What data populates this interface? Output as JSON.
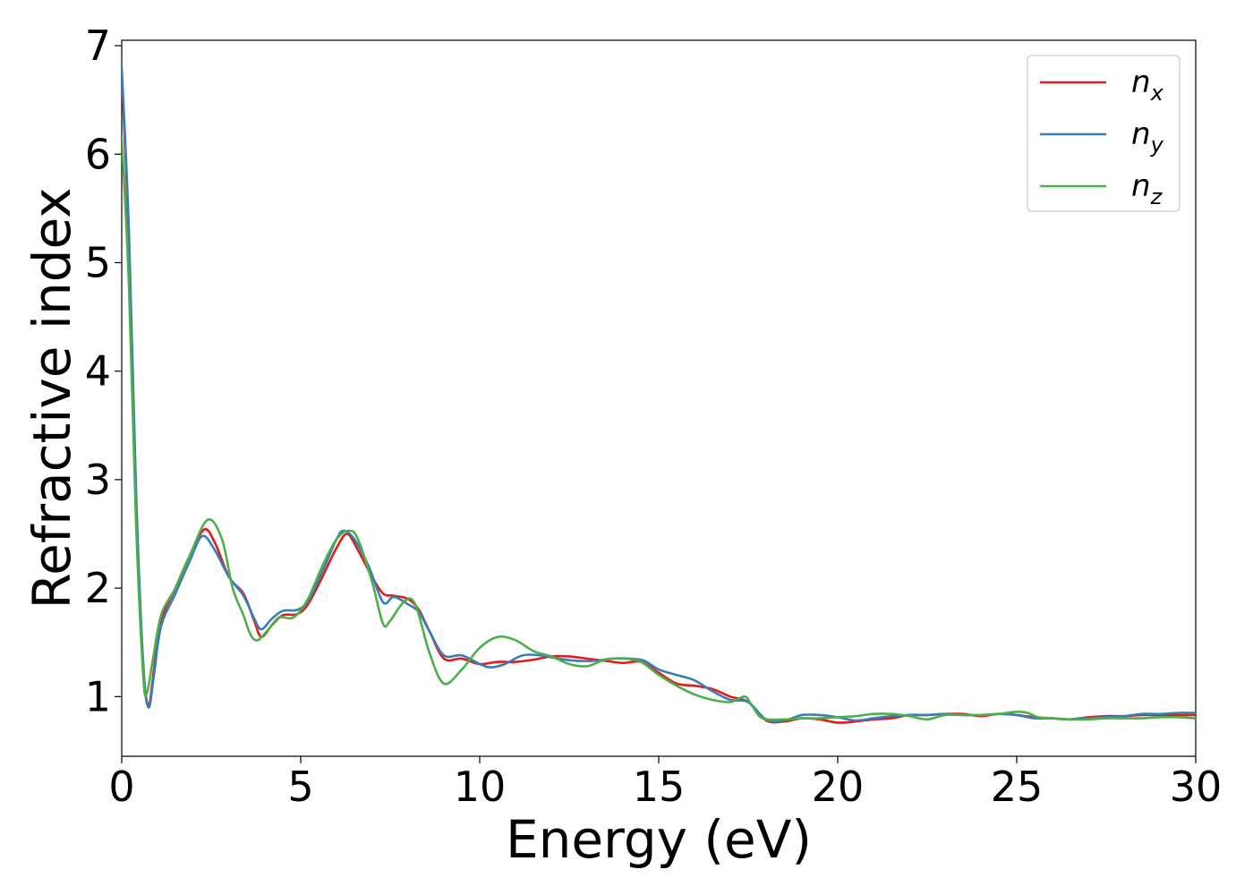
{
  "chart_data": {
    "type": "line",
    "title": "",
    "xlabel": "Energy (eV)",
    "ylabel": "Refractive index",
    "xlim": [
      0,
      30
    ],
    "ylim": [
      0.45,
      7.05
    ],
    "xticks": [
      0,
      5,
      10,
      15,
      20,
      25,
      30
    ],
    "yticks": [
      1,
      2,
      3,
      4,
      5,
      6,
      7
    ],
    "grid": false,
    "legend": "top-right",
    "series": [
      {
        "name": "n",
        "sub": "x",
        "color": "#e41a1c",
        "points": [
          [
            0,
            6.75
          ],
          [
            0.2,
            5.2
          ],
          [
            0.4,
            2.8
          ],
          [
            0.6,
            1.3
          ],
          [
            0.75,
            0.92
          ],
          [
            0.9,
            1.25
          ],
          [
            1.1,
            1.7
          ],
          [
            1.5,
            2.0
          ],
          [
            1.9,
            2.3
          ],
          [
            2.3,
            2.54
          ],
          [
            2.6,
            2.42
          ],
          [
            3.0,
            2.1
          ],
          [
            3.4,
            1.95
          ],
          [
            3.7,
            1.7
          ],
          [
            3.9,
            1.55
          ],
          [
            4.2,
            1.66
          ],
          [
            4.5,
            1.75
          ],
          [
            4.9,
            1.76
          ],
          [
            5.2,
            1.85
          ],
          [
            5.6,
            2.1
          ],
          [
            6.0,
            2.37
          ],
          [
            6.3,
            2.5
          ],
          [
            6.6,
            2.35
          ],
          [
            7.0,
            2.1
          ],
          [
            7.3,
            1.95
          ],
          [
            7.6,
            1.93
          ],
          [
            8.0,
            1.9
          ],
          [
            8.3,
            1.8
          ],
          [
            8.6,
            1.6
          ],
          [
            9.0,
            1.35
          ],
          [
            9.5,
            1.35
          ],
          [
            10.0,
            1.3
          ],
          [
            10.5,
            1.32
          ],
          [
            11.0,
            1.32
          ],
          [
            11.5,
            1.34
          ],
          [
            12.0,
            1.37
          ],
          [
            12.5,
            1.37
          ],
          [
            13.0,
            1.35
          ],
          [
            13.5,
            1.33
          ],
          [
            14.0,
            1.31
          ],
          [
            14.5,
            1.32
          ],
          [
            15.0,
            1.22
          ],
          [
            15.5,
            1.12
          ],
          [
            16.0,
            1.1
          ],
          [
            16.5,
            1.07
          ],
          [
            17.0,
            1.0
          ],
          [
            17.5,
            0.95
          ],
          [
            18.0,
            0.78
          ],
          [
            18.5,
            0.77
          ],
          [
            19.0,
            0.8
          ],
          [
            19.5,
            0.79
          ],
          [
            20.0,
            0.76
          ],
          [
            20.5,
            0.77
          ],
          [
            21.0,
            0.79
          ],
          [
            21.5,
            0.8
          ],
          [
            22.0,
            0.83
          ],
          [
            22.5,
            0.83
          ],
          [
            23.0,
            0.84
          ],
          [
            23.5,
            0.84
          ],
          [
            24.0,
            0.82
          ],
          [
            24.5,
            0.84
          ],
          [
            25.0,
            0.83
          ],
          [
            25.5,
            0.81
          ],
          [
            26.0,
            0.8
          ],
          [
            26.5,
            0.79
          ],
          [
            27.0,
            0.81
          ],
          [
            27.5,
            0.82
          ],
          [
            28.0,
            0.82
          ],
          [
            28.5,
            0.83
          ],
          [
            29.0,
            0.83
          ],
          [
            29.5,
            0.83
          ],
          [
            30.0,
            0.83
          ]
        ]
      },
      {
        "name": "n",
        "sub": "y",
        "color": "#377eb8",
        "points": [
          [
            0,
            6.8
          ],
          [
            0.2,
            5.3
          ],
          [
            0.4,
            2.9
          ],
          [
            0.6,
            1.3
          ],
          [
            0.75,
            0.9
          ],
          [
            0.9,
            1.2
          ],
          [
            1.1,
            1.65
          ],
          [
            1.5,
            1.95
          ],
          [
            1.9,
            2.25
          ],
          [
            2.25,
            2.48
          ],
          [
            2.6,
            2.35
          ],
          [
            3.0,
            2.1
          ],
          [
            3.4,
            1.93
          ],
          [
            3.7,
            1.72
          ],
          [
            3.9,
            1.62
          ],
          [
            4.2,
            1.72
          ],
          [
            4.5,
            1.79
          ],
          [
            4.9,
            1.8
          ],
          [
            5.2,
            1.88
          ],
          [
            5.6,
            2.15
          ],
          [
            6.0,
            2.45
          ],
          [
            6.2,
            2.53
          ],
          [
            6.5,
            2.45
          ],
          [
            6.9,
            2.2
          ],
          [
            7.3,
            1.87
          ],
          [
            7.6,
            1.92
          ],
          [
            8.0,
            1.85
          ],
          [
            8.3,
            1.78
          ],
          [
            8.6,
            1.6
          ],
          [
            9.0,
            1.38
          ],
          [
            9.5,
            1.38
          ],
          [
            10.0,
            1.3
          ],
          [
            10.3,
            1.27
          ],
          [
            10.7,
            1.3
          ],
          [
            11.2,
            1.38
          ],
          [
            11.7,
            1.38
          ],
          [
            12.2,
            1.35
          ],
          [
            12.7,
            1.33
          ],
          [
            13.2,
            1.33
          ],
          [
            13.7,
            1.35
          ],
          [
            14.2,
            1.35
          ],
          [
            14.6,
            1.33
          ],
          [
            15.0,
            1.25
          ],
          [
            15.5,
            1.2
          ],
          [
            16.0,
            1.15
          ],
          [
            16.5,
            1.05
          ],
          [
            17.0,
            0.97
          ],
          [
            17.5,
            0.95
          ],
          [
            18.0,
            0.79
          ],
          [
            18.5,
            0.78
          ],
          [
            19.0,
            0.83
          ],
          [
            19.5,
            0.83
          ],
          [
            20.0,
            0.81
          ],
          [
            20.5,
            0.78
          ],
          [
            21.0,
            0.8
          ],
          [
            21.5,
            0.82
          ],
          [
            22.0,
            0.83
          ],
          [
            22.5,
            0.83
          ],
          [
            23.0,
            0.84
          ],
          [
            23.5,
            0.83
          ],
          [
            24.0,
            0.83
          ],
          [
            24.5,
            0.84
          ],
          [
            25.0,
            0.83
          ],
          [
            25.5,
            0.8
          ],
          [
            26.0,
            0.8
          ],
          [
            26.5,
            0.79
          ],
          [
            27.0,
            0.8
          ],
          [
            27.5,
            0.81
          ],
          [
            28.0,
            0.82
          ],
          [
            28.5,
            0.84
          ],
          [
            29.0,
            0.84
          ],
          [
            29.5,
            0.85
          ],
          [
            30.0,
            0.85
          ]
        ]
      },
      {
        "name": "n",
        "sub": "z",
        "color": "#4daf4a",
        "points": [
          [
            0,
            6.15
          ],
          [
            0.2,
            4.8
          ],
          [
            0.4,
            2.6
          ],
          [
            0.6,
            1.2
          ],
          [
            0.7,
            1.03
          ],
          [
            0.85,
            1.3
          ],
          [
            1.1,
            1.75
          ],
          [
            1.5,
            2.0
          ],
          [
            1.9,
            2.3
          ],
          [
            2.4,
            2.63
          ],
          [
            2.8,
            2.45
          ],
          [
            3.1,
            2.0
          ],
          [
            3.4,
            1.75
          ],
          [
            3.6,
            1.57
          ],
          [
            3.8,
            1.52
          ],
          [
            4.1,
            1.62
          ],
          [
            4.4,
            1.73
          ],
          [
            4.8,
            1.73
          ],
          [
            5.2,
            1.9
          ],
          [
            5.6,
            2.2
          ],
          [
            6.0,
            2.45
          ],
          [
            6.35,
            2.53
          ],
          [
            6.6,
            2.45
          ],
          [
            7.0,
            2.05
          ],
          [
            7.3,
            1.67
          ],
          [
            7.5,
            1.7
          ],
          [
            7.9,
            1.88
          ],
          [
            8.2,
            1.85
          ],
          [
            8.6,
            1.4
          ],
          [
            9.0,
            1.12
          ],
          [
            9.5,
            1.25
          ],
          [
            10.0,
            1.45
          ],
          [
            10.5,
            1.55
          ],
          [
            11.0,
            1.52
          ],
          [
            11.5,
            1.42
          ],
          [
            12.0,
            1.37
          ],
          [
            12.5,
            1.3
          ],
          [
            13.0,
            1.28
          ],
          [
            13.5,
            1.34
          ],
          [
            14.0,
            1.35
          ],
          [
            14.5,
            1.32
          ],
          [
            15.0,
            1.2
          ],
          [
            15.5,
            1.1
          ],
          [
            16.0,
            1.02
          ],
          [
            16.5,
            0.97
          ],
          [
            17.0,
            0.95
          ],
          [
            17.4,
            1.0
          ],
          [
            17.6,
            0.92
          ],
          [
            17.9,
            0.8
          ],
          [
            18.5,
            0.79
          ],
          [
            19.0,
            0.8
          ],
          [
            19.5,
            0.8
          ],
          [
            20.0,
            0.81
          ],
          [
            20.5,
            0.82
          ],
          [
            21.0,
            0.84
          ],
          [
            21.5,
            0.84
          ],
          [
            22.0,
            0.82
          ],
          [
            22.5,
            0.79
          ],
          [
            23.0,
            0.83
          ],
          [
            23.5,
            0.83
          ],
          [
            24.0,
            0.83
          ],
          [
            24.5,
            0.84
          ],
          [
            25.0,
            0.86
          ],
          [
            25.3,
            0.85
          ],
          [
            25.6,
            0.81
          ],
          [
            26.0,
            0.8
          ],
          [
            26.5,
            0.79
          ],
          [
            27.0,
            0.79
          ],
          [
            27.5,
            0.8
          ],
          [
            28.0,
            0.8
          ],
          [
            28.5,
            0.8
          ],
          [
            29.0,
            0.81
          ],
          [
            29.5,
            0.81
          ],
          [
            30.0,
            0.8
          ]
        ]
      }
    ]
  }
}
